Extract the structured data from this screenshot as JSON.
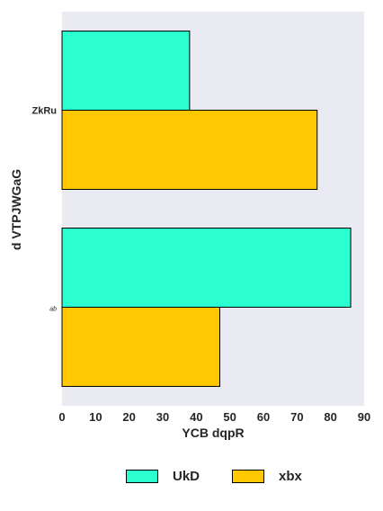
{
  "chart_data": {
    "type": "bar",
    "orientation": "horizontal",
    "categories": [
      "ZkRu",
      "ab"
    ],
    "series": [
      {
        "name": "UkD",
        "values": [
          38,
          86
        ],
        "color": "#2bffcf"
      },
      {
        "name": "xbx",
        "values": [
          76,
          47
        ],
        "color": "#ffc800"
      }
    ],
    "xlabel": "YCB dqpR",
    "ylabel": "d VTPJWGaG",
    "xlim": [
      0,
      90
    ],
    "xticks": [
      0,
      10,
      20,
      30,
      40,
      50,
      60,
      70,
      80,
      90
    ],
    "background": "#eaeaf2",
    "grid": false,
    "legend_position": "bottom"
  }
}
